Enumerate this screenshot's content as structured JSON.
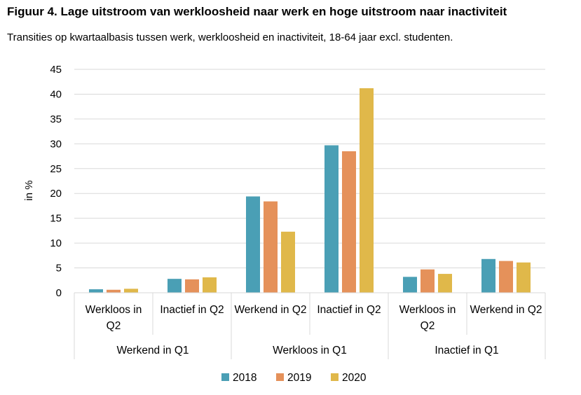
{
  "title": "Figuur 4. Lage uitstroom van werkloosheid naar werk en hoge uitstroom naar inactiviteit",
  "subtitle": "Transities op kwartaalbasis tussen werk, werkloosheid en inactiviteit, 18-64 jaar excl. studenten.",
  "chart_data": {
    "type": "bar",
    "ylabel": "in %",
    "ylim": [
      0,
      45
    ],
    "yticks": [
      0,
      5,
      10,
      15,
      20,
      25,
      30,
      35,
      40,
      45
    ],
    "grid": true,
    "legend_position": "bottom",
    "groups": [
      {
        "label": "Werkend in Q1",
        "categories": [
          "Werkloos in Q2",
          "Inactief in Q2"
        ]
      },
      {
        "label": "Werkloos in Q1",
        "categories": [
          "Werkend in Q2",
          "Inactief in Q2"
        ]
      },
      {
        "label": "Inactief in Q1",
        "categories": [
          "Werkloos in Q2",
          "Werkend in Q2"
        ]
      }
    ],
    "categories": [
      "Werkloos in Q2",
      "Inactief in Q2",
      "Werkend in Q2",
      "Inactief in Q2",
      "Werkloos in Q2",
      "Werkend in Q2"
    ],
    "series": [
      {
        "name": "2018",
        "color": "#4a9fb5",
        "values": [
          0.7,
          2.8,
          19.4,
          29.7,
          3.2,
          6.8
        ]
      },
      {
        "name": "2019",
        "color": "#e5915a",
        "values": [
          0.6,
          2.7,
          18.4,
          28.5,
          4.7,
          6.4
        ]
      },
      {
        "name": "2020",
        "color": "#e0b84a",
        "values": [
          0.8,
          3.1,
          12.3,
          41.2,
          3.8,
          6.1
        ]
      }
    ]
  }
}
